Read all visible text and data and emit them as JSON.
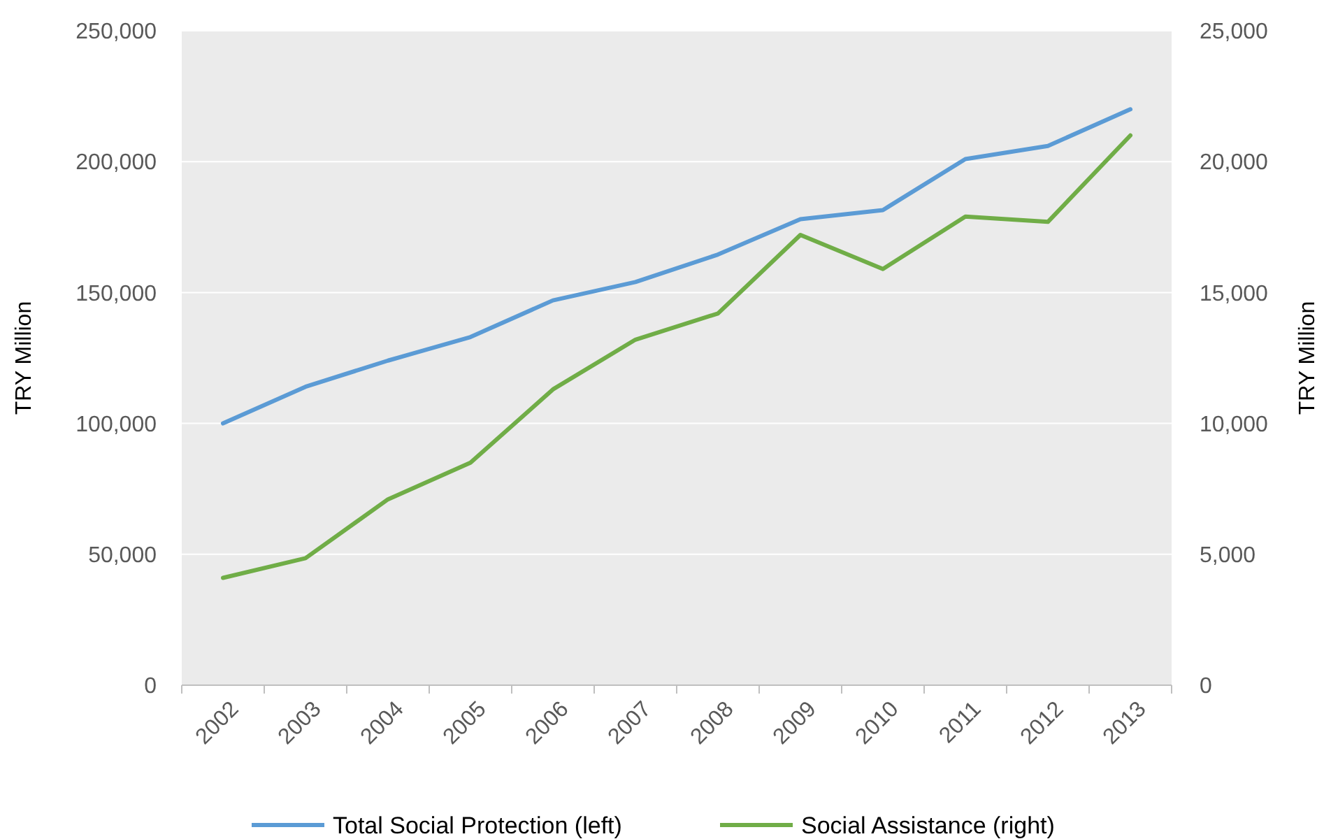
{
  "chart_data": {
    "type": "line",
    "categories": [
      "2002",
      "2003",
      "2004",
      "2005",
      "2006",
      "2007",
      "2008",
      "2009",
      "2010",
      "2011",
      "2012",
      "2013"
    ],
    "series": [
      {
        "name": "Total Social Protection (left)",
        "color": "#5b9bd5",
        "values": [
          100000,
          114000,
          124000,
          133000,
          147000,
          154000,
          164500,
          178000,
          181500,
          201000,
          206000,
          220000
        ]
      },
      {
        "name": "Social Assistance (right)",
        "color": "#70ad47",
        "axis": "y2",
        "values": [
          4100,
          4850,
          7100,
          8500,
          11300,
          13200,
          14200,
          17200,
          15900,
          17900,
          17700,
          21000
        ]
      }
    ],
    "ylabel": "TRY Million",
    "y2label": "TRY Million",
    "ylim": [
      0,
      250000
    ],
    "yticks": [
      {
        "value": 0,
        "label": "0"
      },
      {
        "value": 50000,
        "label": "50,000"
      },
      {
        "value": 100000,
        "label": "100,000"
      },
      {
        "value": 150000,
        "label": "150,000"
      },
      {
        "value": 200000,
        "label": "200,000"
      },
      {
        "value": 250000,
        "label": "250,000"
      }
    ],
    "y2lim": [
      0,
      25000
    ],
    "y2ticks": [
      {
        "value": 0,
        "label": "0"
      },
      {
        "value": 5000,
        "label": "5,000"
      },
      {
        "value": 10000,
        "label": "10,000"
      },
      {
        "value": 15000,
        "label": "15,000"
      },
      {
        "value": 20000,
        "label": "20,000"
      },
      {
        "value": 25000,
        "label": "25,000"
      }
    ],
    "grid": "y",
    "legend": "bottom",
    "marker": "none",
    "line_style": "solid"
  }
}
